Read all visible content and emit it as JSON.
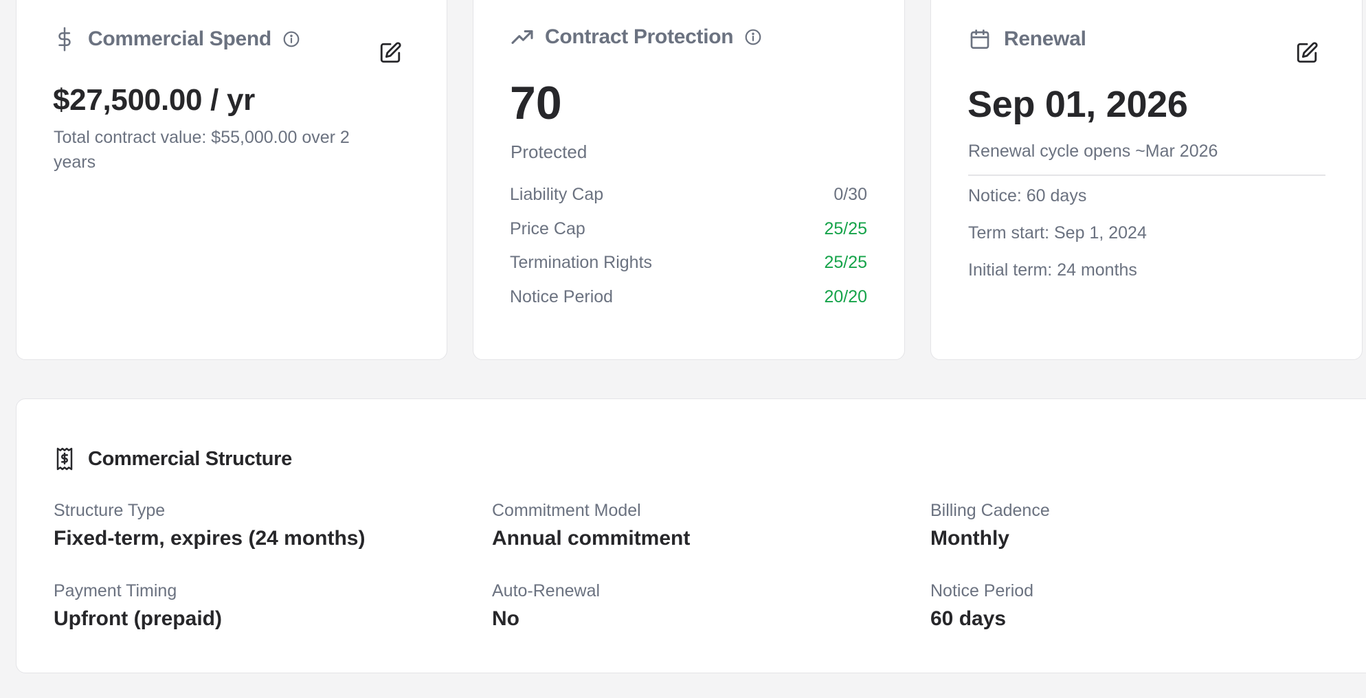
{
  "spend_card": {
    "icon": "dollar-icon",
    "title": "Commercial Spend",
    "info_icon": "info-icon",
    "edit_icon": "edit-icon",
    "amount": "$27,500.00 / yr",
    "total_line1": "Total contract value: $55,000.00 over 2",
    "total_line2": "years"
  },
  "protection_card": {
    "icon": "trending-up-icon",
    "title": "Contract Protection",
    "info_icon": "info-icon",
    "score": "70",
    "status": "Protected",
    "rows": [
      {
        "label": "Liability Cap",
        "value": "0/30",
        "state": "neutral"
      },
      {
        "label": "Price Cap",
        "value": "25/25",
        "state": "full"
      },
      {
        "label": "Termination Rights",
        "value": "25/25",
        "state": "full"
      },
      {
        "label": "Notice Period",
        "value": "20/20",
        "state": "full"
      }
    ],
    "colors": {
      "full": "#16a34a",
      "neutral": "#6b7280"
    }
  },
  "renewal_card": {
    "icon": "calendar-icon",
    "title": "Renewal",
    "edit_icon": "edit-icon",
    "date": "Sep 01, 2026",
    "cycle": "Renewal cycle opens ~Mar 2026",
    "notice": "Notice: 60 days",
    "term_start": "Term start: Sep 1, 2024",
    "initial_term": "Initial term: 24 months"
  },
  "structure_card": {
    "icon": "receipt-dollar-icon",
    "title": "Commercial Structure",
    "fields": [
      {
        "label": "Structure Type",
        "value": "Fixed-term, expires (24 months)"
      },
      {
        "label": "Commitment Model",
        "value": "Annual commitment"
      },
      {
        "label": "Billing Cadence",
        "value": "Monthly"
      },
      {
        "label": "Payment Timing",
        "value": "Upfront (prepaid)"
      },
      {
        "label": "Auto-Renewal",
        "value": "No"
      },
      {
        "label": "Notice Period",
        "value": "60 days"
      }
    ]
  }
}
